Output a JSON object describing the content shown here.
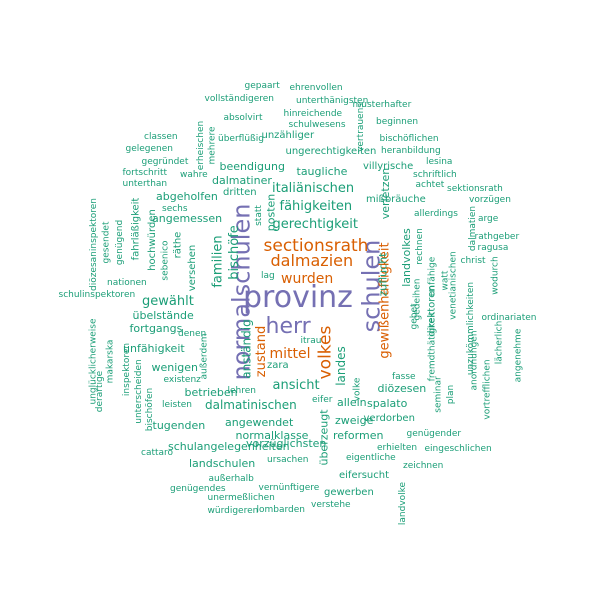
{
  "colors": {
    "purple": "#7570b3",
    "orange": "#d95f02",
    "teal": "#1b9e77",
    "background": "#ffffff"
  },
  "words": [
    {
      "text": "provinz",
      "color": "purple"
    },
    {
      "text": "normalschulen",
      "color": "purple"
    },
    {
      "text": "schulen",
      "color": "purple"
    },
    {
      "text": "herr",
      "color": "purple"
    },
    {
      "text": "sectionsrath",
      "color": "orange"
    },
    {
      "text": "dalmazien",
      "color": "orange"
    },
    {
      "text": "volkes",
      "color": "orange"
    },
    {
      "text": "gewißenhaftigkeit",
      "color": "orange"
    },
    {
      "text": "wurden",
      "color": "orange"
    },
    {
      "text": "mittel",
      "color": "orange"
    },
    {
      "text": "zustand",
      "color": "orange"
    },
    {
      "text": "italiänischen",
      "color": "teal"
    },
    {
      "text": "fähigkeiten",
      "color": "teal"
    },
    {
      "text": "gerechtigkeit",
      "color": "teal"
    },
    {
      "text": "taugliche",
      "color": "teal"
    },
    {
      "text": "dalmatiner",
      "color": "teal"
    },
    {
      "text": "beendigung",
      "color": "teal"
    },
    {
      "text": "ungerechtigkeiten",
      "color": "teal"
    },
    {
      "text": "unzähliger",
      "color": "teal"
    },
    {
      "text": "schulwesens",
      "color": "teal"
    },
    {
      "text": "hinreichende",
      "color": "teal"
    },
    {
      "text": "absolvirt",
      "color": "teal"
    },
    {
      "text": "vollständigeren",
      "color": "teal"
    },
    {
      "text": "unterthänigsten",
      "color": "teal"
    },
    {
      "text": "ehrenvollen",
      "color": "teal"
    },
    {
      "text": "gepaart",
      "color": "teal"
    },
    {
      "text": "musterhafter",
      "color": "teal"
    },
    {
      "text": "beginnen",
      "color": "teal"
    },
    {
      "text": "bischöflichen",
      "color": "teal"
    },
    {
      "text": "heranbildung",
      "color": "teal"
    },
    {
      "text": "vertrauens",
      "color": "teal"
    },
    {
      "text": "lesina",
      "color": "teal"
    },
    {
      "text": "villyrische",
      "color": "teal"
    },
    {
      "text": "schriftlich",
      "color": "teal"
    },
    {
      "text": "achtet",
      "color": "teal"
    },
    {
      "text": "sektionsrath",
      "color": "teal"
    },
    {
      "text": "mißbräuche",
      "color": "teal"
    },
    {
      "text": "vorzügen",
      "color": "teal"
    },
    {
      "text": "allerdings",
      "color": "teal"
    },
    {
      "text": "arge",
      "color": "teal"
    },
    {
      "text": "dalmatien",
      "color": "teal"
    },
    {
      "text": "rathgeber",
      "color": "teal"
    },
    {
      "text": "ragusa",
      "color": "teal"
    },
    {
      "text": "christ",
      "color": "teal"
    },
    {
      "text": "wodurch",
      "color": "teal"
    },
    {
      "text": "ordinariaten",
      "color": "teal"
    },
    {
      "text": "lächerlich",
      "color": "teal"
    },
    {
      "text": "angenehme",
      "color": "teal"
    },
    {
      "text": "vortrefflichen",
      "color": "teal"
    },
    {
      "text": "anordnungen",
      "color": "teal"
    },
    {
      "text": "unzukömmlichkeiten",
      "color": "teal"
    },
    {
      "text": "venetianischen",
      "color": "teal"
    },
    {
      "text": "unfähige",
      "color": "teal"
    },
    {
      "text": "watt",
      "color": "teal"
    },
    {
      "text": "rechnen",
      "color": "teal"
    },
    {
      "text": "landvolkes",
      "color": "teal"
    },
    {
      "text": "verletzen",
      "color": "teal"
    },
    {
      "text": "zuflucht",
      "color": "teal"
    },
    {
      "text": "gebet",
      "color": "teal"
    },
    {
      "text": "gedeihen",
      "color": "teal"
    },
    {
      "text": "direktoren",
      "color": "teal"
    },
    {
      "text": "fremdthätigkeit",
      "color": "teal"
    },
    {
      "text": "seminar",
      "color": "teal"
    },
    {
      "text": "plan",
      "color": "teal"
    },
    {
      "text": "diözesen",
      "color": "teal"
    },
    {
      "text": "spalato",
      "color": "teal"
    },
    {
      "text": "verdorben",
      "color": "teal"
    },
    {
      "text": "genügender",
      "color": "teal"
    },
    {
      "text": "erhielten",
      "color": "teal"
    },
    {
      "text": "eingeschlichen",
      "color": "teal"
    },
    {
      "text": "zeichnen",
      "color": "teal"
    },
    {
      "text": "eifersucht",
      "color": "teal"
    },
    {
      "text": "gewerben",
      "color": "teal"
    },
    {
      "text": "verstehe",
      "color": "teal"
    },
    {
      "text": "landvolke",
      "color": "teal"
    },
    {
      "text": "fasse",
      "color": "teal"
    },
    {
      "text": "allein",
      "color": "teal"
    },
    {
      "text": "zweige",
      "color": "teal"
    },
    {
      "text": "reformen",
      "color": "teal"
    },
    {
      "text": "eigentliche",
      "color": "teal"
    },
    {
      "text": "volke",
      "color": "teal"
    },
    {
      "text": "eifer",
      "color": "teal"
    },
    {
      "text": "überzeugt",
      "color": "teal"
    },
    {
      "text": "landes",
      "color": "teal"
    },
    {
      "text": "itrau",
      "color": "teal"
    },
    {
      "text": "ansicht",
      "color": "teal"
    },
    {
      "text": "zara",
      "color": "teal"
    },
    {
      "text": "lehren",
      "color": "teal"
    },
    {
      "text": "betrieben",
      "color": "teal"
    },
    {
      "text": "dalmatinischen",
      "color": "teal"
    },
    {
      "text": "angewendet",
      "color": "teal"
    },
    {
      "text": "normalklasse",
      "color": "teal"
    },
    {
      "text": "schulangelegenheiten",
      "color": "teal"
    },
    {
      "text": "vorzüglichsten",
      "color": "teal"
    },
    {
      "text": "ursachen",
      "color": "teal"
    },
    {
      "text": "landschulen",
      "color": "teal"
    },
    {
      "text": "vernünftigere",
      "color": "teal"
    },
    {
      "text": "unermeßlichen",
      "color": "teal"
    },
    {
      "text": "lombarden",
      "color": "teal"
    },
    {
      "text": "außerhalb",
      "color": "teal"
    },
    {
      "text": "genügendes",
      "color": "teal"
    },
    {
      "text": "würdigeren",
      "color": "teal"
    },
    {
      "text": "cattaro",
      "color": "teal"
    },
    {
      "text": "tugenden",
      "color": "teal"
    },
    {
      "text": "leisten",
      "color": "teal"
    },
    {
      "text": "existenz",
      "color": "teal"
    },
    {
      "text": "wenigen",
      "color": "teal"
    },
    {
      "text": "außerdem",
      "color": "teal"
    },
    {
      "text": "unfähigkeit",
      "color": "teal"
    },
    {
      "text": "denen",
      "color": "teal"
    },
    {
      "text": "anständig",
      "color": "teal"
    },
    {
      "text": "fortgangs",
      "color": "teal"
    },
    {
      "text": "übelstände",
      "color": "teal"
    },
    {
      "text": "gewählt",
      "color": "teal"
    },
    {
      "text": "familien",
      "color": "teal"
    },
    {
      "text": "bischöfe",
      "color": "teal"
    },
    {
      "text": "versehen",
      "color": "teal"
    },
    {
      "text": "räthe",
      "color": "teal"
    },
    {
      "text": "angemessen",
      "color": "teal"
    },
    {
      "text": "dritten",
      "color": "teal"
    },
    {
      "text": "abgeholfen",
      "color": "teal"
    },
    {
      "text": "sechs",
      "color": "teal"
    },
    {
      "text": "posten",
      "color": "teal"
    },
    {
      "text": "statt",
      "color": "teal"
    },
    {
      "text": "lag",
      "color": "teal"
    },
    {
      "text": "wahre",
      "color": "teal"
    },
    {
      "text": "gegründet",
      "color": "teal"
    },
    {
      "text": "fortschritt",
      "color": "teal"
    },
    {
      "text": "unterthan",
      "color": "teal"
    },
    {
      "text": "gelegenen",
      "color": "teal"
    },
    {
      "text": "classen",
      "color": "teal"
    },
    {
      "text": "erheischen",
      "color": "teal"
    },
    {
      "text": "mehrere",
      "color": "teal"
    },
    {
      "text": "überflüßig",
      "color": "teal"
    },
    {
      "text": "diözesaninspektoren",
      "color": "teal"
    },
    {
      "text": "gesendet",
      "color": "teal"
    },
    {
      "text": "genügend",
      "color": "teal"
    },
    {
      "text": "fahrläßigkeit",
      "color": "teal"
    },
    {
      "text": "hochwürden",
      "color": "teal"
    },
    {
      "text": "sebenico",
      "color": "teal"
    },
    {
      "text": "nationen",
      "color": "teal"
    },
    {
      "text": "schulinspektoren",
      "color": "teal"
    },
    {
      "text": "unglücklicherweise",
      "color": "teal"
    },
    {
      "text": "makarska",
      "color": "teal"
    },
    {
      "text": "derartige",
      "color": "teal"
    },
    {
      "text": "inspektoren",
      "color": "teal"
    },
    {
      "text": "unterscheiden",
      "color": "teal"
    },
    {
      "text": "bischöfen",
      "color": "teal"
    }
  ]
}
